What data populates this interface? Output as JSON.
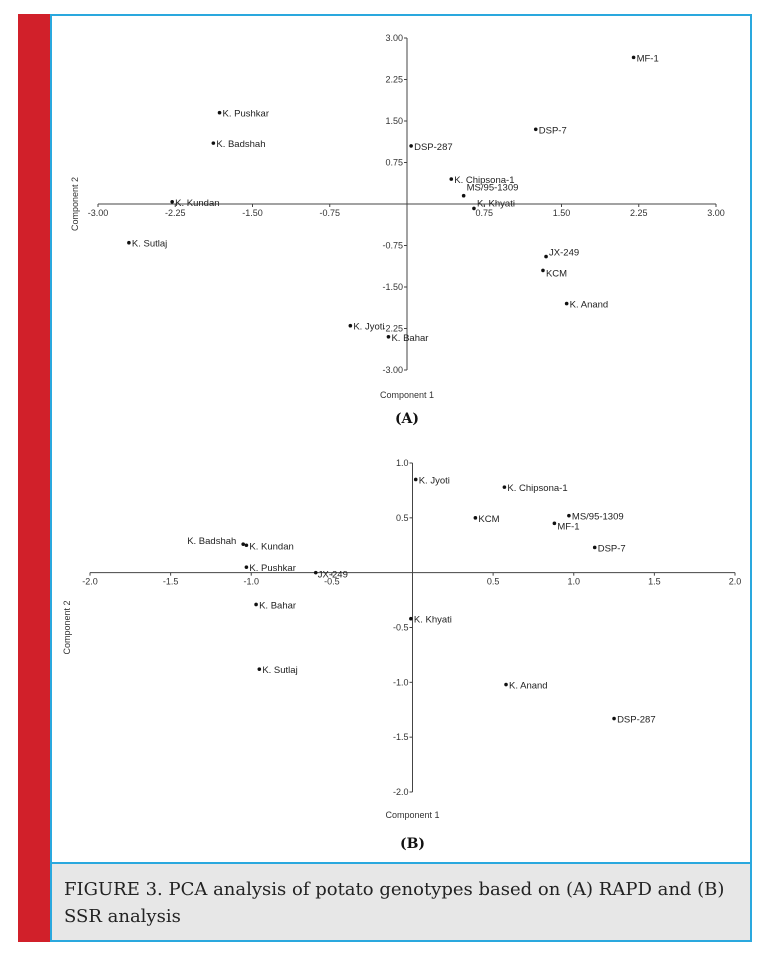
{
  "caption": "FIGURE 3. PCA analysis of potato genotypes based on (A) RAPD and (B) SSR analysis",
  "colors": {
    "strip": "#d1202a",
    "border": "#2aa8de",
    "caption_bg": "#e7e7e7"
  },
  "chart_data": [
    {
      "type": "scatter",
      "panel_label": "(A)",
      "xlabel": "Component 1",
      "ylabel": "Component 2",
      "xlim": [
        -3.0,
        3.0
      ],
      "ylim": [
        -3.0,
        3.0
      ],
      "xticks": [
        -3.0,
        -2.25,
        -1.5,
        -0.75,
        0.75,
        1.5,
        2.25,
        3.0
      ],
      "xtick_labels": [
        "-3.00",
        "-2.25",
        "-1.50",
        "-0.75",
        "0.75",
        "1.50",
        "2.25",
        "3.00"
      ],
      "yticks": [
        3.0,
        2.25,
        1.5,
        0.75,
        -0.75,
        -1.5,
        -2.25,
        -3.0
      ],
      "ytick_labels": [
        "3.00",
        "2.25",
        "1.50",
        "0.75",
        "-0.75",
        "-1.50",
        "-2.25",
        "-3.00"
      ],
      "grid": false,
      "points": [
        {
          "label": "MF-1",
          "x": 2.2,
          "y": 2.65
        },
        {
          "label": "DSP-7",
          "x": 1.25,
          "y": 1.35
        },
        {
          "label": "DSP-287",
          "x": 0.04,
          "y": 1.05
        },
        {
          "label": "K. Pushkar",
          "x": -1.82,
          "y": 1.65
        },
        {
          "label": "K. Badshah",
          "x": -1.88,
          "y": 1.1
        },
        {
          "label": "K. Chipsona-1",
          "x": 0.43,
          "y": 0.45
        },
        {
          "label": "MS/95-1309",
          "x": 0.55,
          "y": 0.15
        },
        {
          "label": "K. Kundan",
          "x": -2.28,
          "y": 0.04
        },
        {
          "label": "K. Khyati",
          "x": 0.65,
          "y": -0.08
        },
        {
          "label": "K. Sutlaj",
          "x": -2.7,
          "y": -0.7
        },
        {
          "label": "JX-249",
          "x": 1.35,
          "y": -0.95
        },
        {
          "label": "KCM",
          "x": 1.32,
          "y": -1.2
        },
        {
          "label": "K. Anand",
          "x": 1.55,
          "y": -1.8
        },
        {
          "label": "K. Jyoti",
          "x": -0.55,
          "y": -2.2
        },
        {
          "label": "K. Bahar",
          "x": -0.18,
          "y": -2.4
        }
      ]
    },
    {
      "type": "scatter",
      "panel_label": "(B)",
      "xlabel": "Component 1",
      "ylabel": "Component 2",
      "xlim": [
        -2.0,
        2.0
      ],
      "ylim": [
        -2.0,
        1.0
      ],
      "xticks": [
        -2.0,
        -1.5,
        -1.0,
        -0.5,
        0.5,
        1.0,
        1.5,
        2.0
      ],
      "xtick_labels": [
        "-2.0",
        "-1.5",
        "-1.0",
        "-0.5",
        "0.5",
        "1.0",
        "1.5",
        "2.0"
      ],
      "yticks": [
        1.0,
        0.5,
        -0.5,
        -1.0,
        -1.5,
        -2.0
      ],
      "ytick_labels": [
        "1.0",
        "0.5",
        "-0.5",
        "-1.0",
        "-1.5",
        "-2.0"
      ],
      "grid": false,
      "points": [
        {
          "label": "K. Jyoti",
          "x": 0.02,
          "y": 0.85
        },
        {
          "label": "K. Chipsona-1",
          "x": 0.57,
          "y": 0.78
        },
        {
          "label": "MS/95-1309",
          "x": 0.97,
          "y": 0.52
        },
        {
          "label": "KCM",
          "x": 0.39,
          "y": 0.5
        },
        {
          "label": "MF-1",
          "x": 0.88,
          "y": 0.45
        },
        {
          "label": "DSP-7",
          "x": 1.13,
          "y": 0.23
        },
        {
          "label": "K. Badshah",
          "x": -1.05,
          "y": 0.26
        },
        {
          "label": "K. Kundan",
          "x": -1.03,
          "y": 0.25
        },
        {
          "label": "K. Pushkar",
          "x": -1.03,
          "y": 0.05
        },
        {
          "label": "JX-249",
          "x": -0.6,
          "y": 0.0
        },
        {
          "label": "K. Bahar",
          "x": -0.97,
          "y": -0.29
        },
        {
          "label": "K. Khyati",
          "x": -0.01,
          "y": -0.42
        },
        {
          "label": "K. Sutlaj",
          "x": -0.95,
          "y": -0.88
        },
        {
          "label": "K. Anand",
          "x": 0.58,
          "y": -1.02
        },
        {
          "label": "DSP-287",
          "x": 1.25,
          "y": -1.33
        }
      ]
    }
  ]
}
